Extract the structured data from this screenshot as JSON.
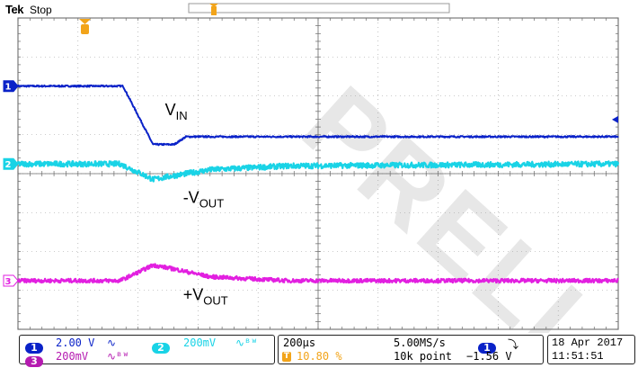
{
  "header": {
    "brand": "Tek",
    "acq_state": "Stop"
  },
  "watermark": "PRELI",
  "chart_data": {
    "type": "line",
    "title": "",
    "time_per_div_us": 200,
    "divisions": {
      "x": 10,
      "y": 8
    },
    "series": [
      {
        "channel": "1",
        "color": "#0a22c8",
        "marker_level_div": 6.25,
        "x_div": [
          0,
          1.75,
          2.25,
          2.6,
          2.8,
          10
        ],
        "y_div": [
          6.25,
          6.25,
          4.75,
          4.75,
          4.95,
          4.95
        ],
        "noise": 0.02
      },
      {
        "channel": "2",
        "color": "#19d3e6",
        "marker_level_div": 4.25,
        "x_div": [
          0,
          1.7,
          2.05,
          2.25,
          2.6,
          3.2,
          4.5,
          10
        ],
        "y_div": [
          4.25,
          4.25,
          4.0,
          3.85,
          3.95,
          4.1,
          4.2,
          4.25
        ],
        "noise": 0.07
      },
      {
        "channel": "3",
        "color": "#e21fe0",
        "marker_level_div": 1.25,
        "x_div": [
          0,
          1.7,
          2.05,
          2.25,
          2.6,
          3.2,
          4.5,
          10
        ],
        "y_div": [
          1.25,
          1.25,
          1.5,
          1.65,
          1.55,
          1.35,
          1.25,
          1.25
        ],
        "noise": 0.05
      }
    ],
    "annotations": [
      {
        "base": "V",
        "sub": "IN",
        "x_div": 2.45,
        "y_div": 5.5
      },
      {
        "base": "-V",
        "sub": "OUT",
        "x_div": 2.75,
        "y_div": 3.25
      },
      {
        "base": "+V",
        "sub": "OUT",
        "x_div": 2.75,
        "y_div": 0.75
      }
    ]
  },
  "status": {
    "ch1": {
      "num": "1",
      "scale": "2.00 V",
      "coupling": "∿",
      "color": "#0a22c8"
    },
    "ch2": {
      "num": "2",
      "scale": "200mV",
      "coupling": "∿ᴮᵂ",
      "color": "#19d3e6"
    },
    "ch3": {
      "num": "3",
      "scale": "200mV",
      "coupling": "∿ᴮᵂ",
      "color": "#b51ab0"
    },
    "timebase": "200μs",
    "trigger_pos": "10.80 %",
    "sample_rate": "5.00MS/s",
    "record_length": "10k point",
    "trigger_source": "1",
    "trigger_slope": "⤵",
    "trigger_level": "−1.56 V",
    "date": "18 Apr 2017",
    "time": "11:51:51"
  }
}
